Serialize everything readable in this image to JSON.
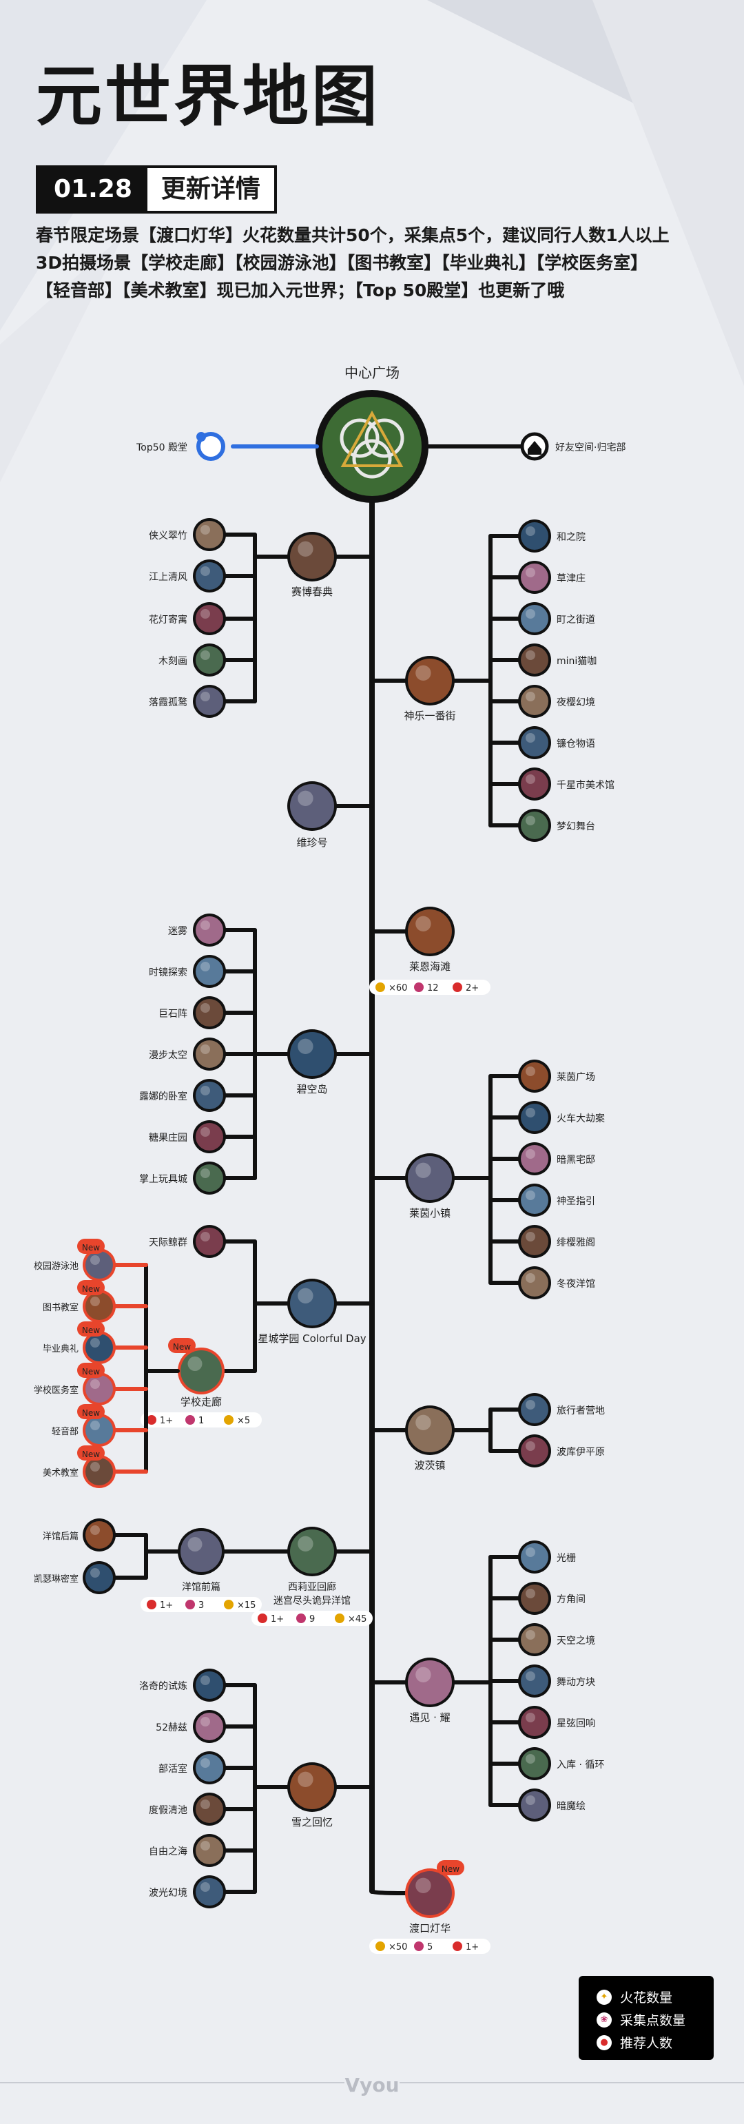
{
  "page": {
    "title": "元世界地图",
    "update_date": "01.28",
    "update_label": "更新详情",
    "intro_lines": [
      "春节限定场景【渡口灯华】火花数量共计50个，采集点5个，建议同行人数1人以上",
      "3D拍摄场景【学校走廊】【校园游泳池】【图书教室】【毕业典礼】【学校医务室】",
      "【轻音部】【美术教室】现已加入元世界；【Top 50殿堂】也更新了哦"
    ],
    "brand": "Vyou"
  },
  "legend": [
    {
      "label": "火花数量",
      "icon": "spark-icon"
    },
    {
      "label": "采集点数量",
      "icon": "collect-icon"
    },
    {
      "label": "推荐人数",
      "icon": "people-icon"
    }
  ],
  "map": {
    "center": {
      "label": "中心广场"
    },
    "top50": {
      "label": "Top50 殿堂"
    },
    "home": {
      "label": "好友空间·归宅部"
    },
    "hubs": [
      {
        "id": "saibo",
        "label": "赛博春典",
        "children": [
          "侠义翠竹",
          "江上清风",
          "花灯寄寓",
          "木刻画",
          "落霞孤鹜"
        ]
      },
      {
        "id": "shenle",
        "label": "神乐一番街",
        "children": [
          "和之院",
          "草津庄",
          "町之街道",
          "mini猫咖",
          "夜樱幻境",
          "镰仓物语",
          "千星市美术馆",
          "梦幻舞台"
        ]
      },
      {
        "id": "weizhen",
        "label": "维珍号",
        "children": []
      },
      {
        "id": "laien",
        "label": "莱恩海滩",
        "children": [],
        "stats": {
          "spark": "×60",
          "collect": "12",
          "people": "2+"
        }
      },
      {
        "id": "bikong",
        "label": "碧空岛",
        "children": [
          "迷雾",
          "时镜探索",
          "巨石阵",
          "漫步太空",
          "露娜的卧室",
          "糖果庄园",
          "掌上玩具城"
        ]
      },
      {
        "id": "laiyin",
        "label": "莱茵小镇",
        "children": [
          "莱茵广场",
          "火车大劫案",
          "暗黑宅邸",
          "神圣指引",
          "绯樱雅阁",
          "冬夜洋馆"
        ]
      },
      {
        "id": "xingcheng",
        "label": "星城学园 Colorful Day",
        "children": [
          "天际鲸群"
        ]
      },
      {
        "id": "xuexiao",
        "label": "学校走廊",
        "badge": "New",
        "stats": {
          "people": "1+",
          "collect": "1",
          "spark": "×5"
        },
        "children": [
          {
            "label": "校园游泳池",
            "badge": "New"
          },
          {
            "label": "图书教室",
            "badge": "New"
          },
          {
            "label": "毕业典礼",
            "badge": "New"
          },
          {
            "label": "学校医务室",
            "badge": "New"
          },
          {
            "label": "轻音部",
            "badge": "New"
          },
          {
            "label": "美术教室",
            "badge": "New"
          }
        ]
      },
      {
        "id": "bomao",
        "label": "波茨镇",
        "children": [
          "旅行者营地",
          "波库伊平原"
        ]
      },
      {
        "id": "yangguan",
        "label": "洋馆前篇",
        "stats": {
          "people": "1+",
          "collect": "3",
          "spark": "×15"
        },
        "children": [
          "洋馆后篇",
          "凯瑟琳密室"
        ]
      },
      {
        "id": "xili",
        "label": "西莉亚回廊",
        "sublabel": "迷宫尽头诡异洋馆",
        "stats": {
          "people": "1+",
          "collect": "9",
          "spark": "×45"
        },
        "children": []
      },
      {
        "id": "yujian",
        "label": "遇见 · 耀",
        "children": [
          "光栅",
          "方角间",
          "天空之境",
          "舞动方块",
          "星弦回响",
          "入库 · 循环",
          "暗魔绘"
        ]
      },
      {
        "id": "xuezhi",
        "label": "雪之回忆",
        "children": [
          "洛奇的试炼",
          "52赫兹",
          "部活室",
          "度假清池",
          "自由之海",
          "波光幻境"
        ]
      },
      {
        "id": "dukou",
        "label": "渡口灯华",
        "badge": "New",
        "stats": {
          "spark": "×50",
          "collect": "5",
          "people": "1+"
        },
        "children": []
      }
    ]
  },
  "colors": {
    "accent_red": "#e8452c",
    "accent_blue": "#2f6fe0",
    "line": "#111111",
    "center_green": "#3d6b34"
  }
}
